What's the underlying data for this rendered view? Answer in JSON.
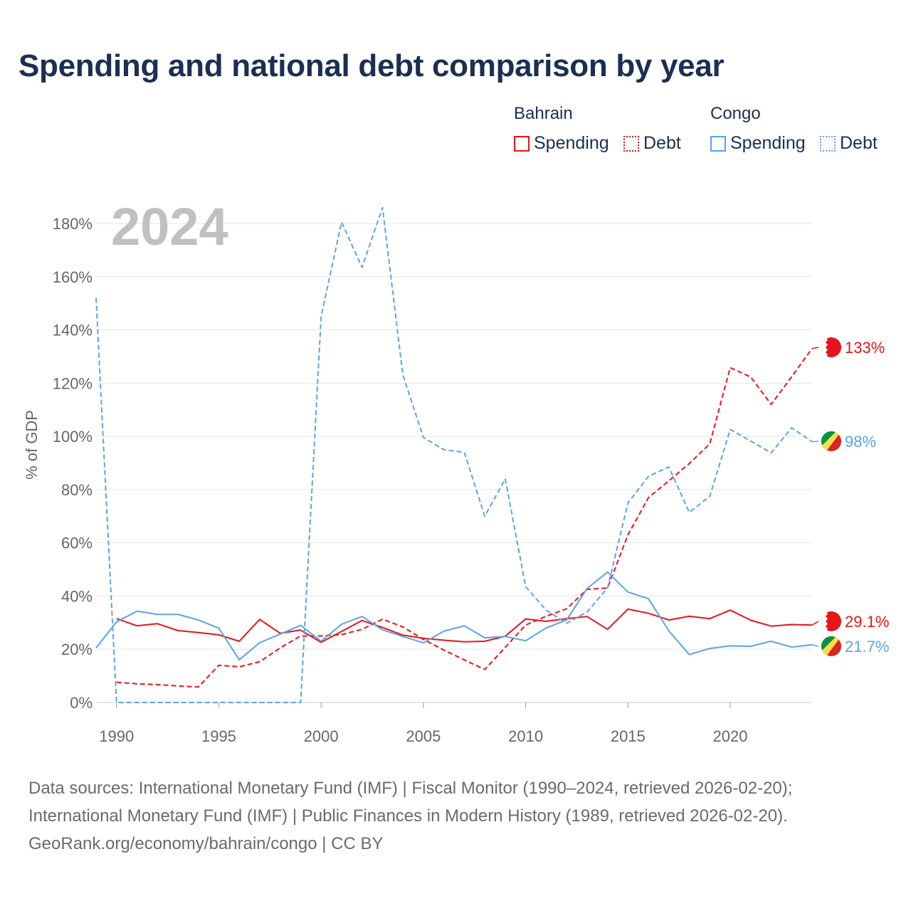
{
  "title": "Spending and national debt comparison by year",
  "legend": {
    "groups": [
      {
        "country": "Bahrain",
        "items": [
          {
            "label": "Spending",
            "style": "solid"
          },
          {
            "label": "Debt",
            "style": "dotted"
          }
        ],
        "color": "#e8141b"
      },
      {
        "country": "Congo",
        "items": [
          {
            "label": "Spending",
            "style": "solid"
          },
          {
            "label": "Debt",
            "style": "dotted"
          }
        ],
        "color": "#5aa4e6"
      }
    ]
  },
  "chart_data": {
    "type": "line",
    "title": "Spending and national debt comparison by year",
    "year_label": "2024",
    "xlabel": "",
    "ylabel": "% of GDP",
    "xlim": [
      1989,
      2024
    ],
    "ylim": [
      0,
      180
    ],
    "x_ticks": [
      1990,
      1995,
      2000,
      2005,
      2010,
      2015,
      2020
    ],
    "y_ticks": [
      0,
      20,
      40,
      60,
      80,
      100,
      120,
      140,
      160,
      180
    ],
    "y_tick_labels": [
      "0%",
      "20%",
      "40%",
      "60%",
      "80%",
      "100%",
      "120%",
      "140%",
      "160%",
      "180%"
    ],
    "series": [
      {
        "name": "Bahrain Spending",
        "country": "Bahrain",
        "metric": "Spending",
        "color": "#e8141b",
        "dash": "solid",
        "end_label": "29.1%",
        "points": [
          [
            1990,
            31.5
          ],
          [
            1991,
            28.8
          ],
          [
            1992,
            29.6
          ],
          [
            1993,
            27
          ],
          [
            1994,
            26.3
          ],
          [
            1995,
            25.4
          ],
          [
            1996,
            23
          ],
          [
            1997,
            31.2
          ],
          [
            1998,
            26
          ],
          [
            1999,
            27.2
          ],
          [
            2000,
            22.6
          ],
          [
            2001,
            26.7
          ],
          [
            2002,
            30.8
          ],
          [
            2003,
            28.2
          ],
          [
            2004,
            25.3
          ],
          [
            2005,
            24.1
          ],
          [
            2006,
            23.4
          ],
          [
            2007,
            22.8
          ],
          [
            2008,
            23
          ],
          [
            2009,
            24.9
          ],
          [
            2010,
            31.4
          ],
          [
            2011,
            30.5
          ],
          [
            2012,
            31.5
          ],
          [
            2013,
            32.3
          ],
          [
            2014,
            27.5
          ],
          [
            2015,
            35.1
          ],
          [
            2016,
            33.5
          ],
          [
            2017,
            31
          ],
          [
            2018,
            32.4
          ],
          [
            2019,
            31.5
          ],
          [
            2020,
            34.7
          ],
          [
            2021,
            30.9
          ],
          [
            2022,
            28.7
          ],
          [
            2023,
            29.3
          ],
          [
            2024,
            29.1
          ]
        ]
      },
      {
        "name": "Bahrain Debt",
        "country": "Bahrain",
        "metric": "Debt",
        "color": "#e8141b",
        "dash": "dashed",
        "end_label": "133%",
        "points": [
          [
            1990,
            7.6
          ],
          [
            1991,
            7
          ],
          [
            1992,
            6.7
          ],
          [
            1993,
            6.2
          ],
          [
            1994,
            5.8
          ],
          [
            1995,
            14
          ],
          [
            1996,
            13.4
          ],
          [
            1997,
            15.3
          ],
          [
            1998,
            20.5
          ],
          [
            1999,
            25
          ],
          [
            2000,
            25
          ],
          [
            2001,
            25.5
          ],
          [
            2002,
            27.5
          ],
          [
            2003,
            31.3
          ],
          [
            2004,
            28.4
          ],
          [
            2005,
            23.7
          ],
          [
            2006,
            19.7
          ],
          [
            2007,
            16
          ],
          [
            2008,
            12.4
          ],
          [
            2009,
            20.7
          ],
          [
            2010,
            29.1
          ],
          [
            2011,
            32.4
          ],
          [
            2012,
            35.2
          ],
          [
            2013,
            42.5
          ],
          [
            2014,
            43
          ],
          [
            2015,
            63
          ],
          [
            2016,
            77
          ],
          [
            2017,
            83.3
          ],
          [
            2018,
            89.8
          ],
          [
            2019,
            97.2
          ],
          [
            2020,
            125.8
          ],
          [
            2021,
            122.3
          ],
          [
            2022,
            112
          ],
          [
            2023,
            122.4
          ],
          [
            2024,
            133
          ]
        ]
      },
      {
        "name": "Congo Spending",
        "country": "Congo",
        "metric": "Spending",
        "color": "#5aa4e6",
        "dash": "solid",
        "end_label": "21.7%",
        "points": [
          [
            1989,
            20.5
          ],
          [
            1990,
            30.3
          ],
          [
            1991,
            34.3
          ],
          [
            1992,
            33.1
          ],
          [
            1993,
            33.1
          ],
          [
            1994,
            31
          ],
          [
            1995,
            27.9
          ],
          [
            1996,
            16
          ],
          [
            1997,
            22.5
          ],
          [
            1998,
            25.7
          ],
          [
            1999,
            29
          ],
          [
            2000,
            23
          ],
          [
            2001,
            29.4
          ],
          [
            2002,
            32.3
          ],
          [
            2003,
            27.3
          ],
          [
            2004,
            24.8
          ],
          [
            2005,
            22.4
          ],
          [
            2006,
            26.8
          ],
          [
            2007,
            28.8
          ],
          [
            2008,
            24.3
          ],
          [
            2009,
            24.8
          ],
          [
            2010,
            23.2
          ],
          [
            2011,
            28
          ],
          [
            2012,
            31
          ],
          [
            2013,
            42.8
          ],
          [
            2014,
            49
          ],
          [
            2015,
            41.5
          ],
          [
            2016,
            39
          ],
          [
            2017,
            26.9
          ],
          [
            2018,
            18
          ],
          [
            2019,
            20.3
          ],
          [
            2020,
            21.3
          ],
          [
            2021,
            21.1
          ],
          [
            2022,
            23
          ],
          [
            2023,
            20.8
          ],
          [
            2024,
            21.7
          ]
        ]
      },
      {
        "name": "Congo Debt",
        "country": "Congo",
        "metric": "Debt",
        "color": "#5aa4e6",
        "dash": "dashed",
        "end_label": "98%",
        "points": [
          [
            1989,
            152
          ],
          [
            1990,
            0
          ],
          [
            1991,
            0
          ],
          [
            1992,
            0
          ],
          [
            1993,
            0
          ],
          [
            1994,
            0
          ],
          [
            1995,
            0
          ],
          [
            1996,
            0
          ],
          [
            1997,
            0
          ],
          [
            1998,
            0
          ],
          [
            1999,
            0
          ],
          [
            2000,
            145
          ],
          [
            2001,
            180.5
          ],
          [
            2002,
            163.5
          ],
          [
            2003,
            186
          ],
          [
            2004,
            123
          ],
          [
            2005,
            99.6
          ],
          [
            2006,
            95
          ],
          [
            2007,
            94
          ],
          [
            2008,
            70
          ],
          [
            2009,
            84
          ],
          [
            2010,
            43.5
          ],
          [
            2011,
            34.7
          ],
          [
            2012,
            29.8
          ],
          [
            2013,
            34
          ],
          [
            2014,
            43
          ],
          [
            2015,
            75
          ],
          [
            2016,
            85
          ],
          [
            2017,
            88.5
          ],
          [
            2018,
            71.4
          ],
          [
            2019,
            77.5
          ],
          [
            2020,
            102.6
          ],
          [
            2021,
            98.2
          ],
          [
            2022,
            93.8
          ],
          [
            2023,
            103.2
          ],
          [
            2024,
            98
          ]
        ]
      }
    ]
  },
  "footer": {
    "line1": "Data sources: International Monetary Fund (IMF) | Fiscal Monitor (1990–2024, retrieved 2026-02-20);",
    "line2": "International Monetary Fund (IMF) | Public Finances in Modern History (1989, retrieved 2026-02-20).",
    "line3": "GeoRank.org/economy/bahrain/congo | CC BY"
  }
}
